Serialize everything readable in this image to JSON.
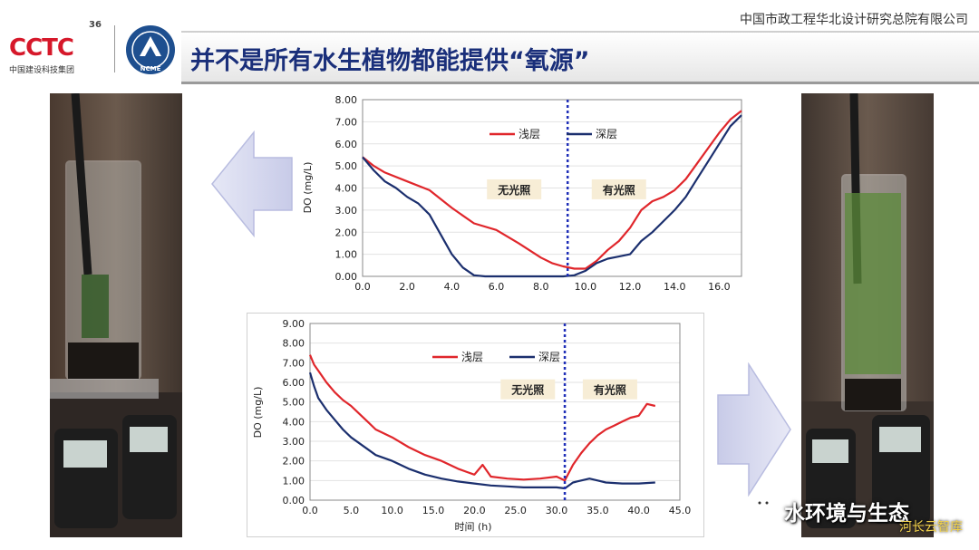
{
  "header": {
    "org_name": "中国市政工程华北设计研究总院有限公司",
    "logo_number": "36",
    "logo_mark": "CCTC",
    "logo_subtitle": "中国建设科技集团",
    "badge_text": "NCME",
    "title": "并不是所有水生植物都能提供“氧源”"
  },
  "watermark": {
    "text": "水环境与生态",
    "sub": "河长云智库"
  },
  "colors": {
    "shallow": "#e0262b",
    "deep": "#1b2f6e",
    "divider": "#1f2fb8",
    "title": "#1a2f7a"
  },
  "chart_data": [
    {
      "type": "line",
      "ylabel": "DO (mg/L)",
      "xlabel": "",
      "xlim": [
        0,
        17
      ],
      "ylim": [
        0,
        8
      ],
      "xticks": [
        "0.0",
        "2.0",
        "4.0",
        "6.0",
        "8.0",
        "10.0",
        "12.0",
        "14.0",
        "16.0"
      ],
      "yticks": [
        "0.00",
        "1.00",
        "2.00",
        "3.00",
        "4.00",
        "5.00",
        "6.00",
        "7.00",
        "8.00"
      ],
      "vline_x": 9.2,
      "annotations": [
        {
          "text": "无光照",
          "x": 6.8,
          "y": 3.9
        },
        {
          "text": "有光照",
          "x": 11.5,
          "y": 3.9
        }
      ],
      "legend": "top-center",
      "series": [
        {
          "name": "浅层",
          "x": [
            0,
            0.5,
            1,
            2,
            3,
            4,
            5,
            6,
            7,
            8,
            8.5,
            9,
            9.5,
            10,
            10.5,
            11,
            11.5,
            12,
            12.5,
            13,
            13.5,
            14,
            14.5,
            15,
            15.5,
            16,
            16.5,
            17
          ],
          "y": [
            5.4,
            5.0,
            4.7,
            4.3,
            3.9,
            3.1,
            2.4,
            2.1,
            1.5,
            0.85,
            0.6,
            0.45,
            0.35,
            0.35,
            0.7,
            1.2,
            1.6,
            2.2,
            3.0,
            3.4,
            3.6,
            3.9,
            4.4,
            5.1,
            5.8,
            6.5,
            7.1,
            7.5
          ]
        },
        {
          "name": "深层",
          "x": [
            0,
            0.5,
            1,
            1.5,
            2,
            2.5,
            3,
            3.5,
            4,
            4.5,
            5,
            5.5,
            6,
            7,
            8,
            9,
            9.5,
            10,
            10.5,
            11,
            11.5,
            12,
            12.5,
            13,
            13.5,
            14,
            14.5,
            15,
            15.5,
            16,
            16.5,
            17
          ],
          "y": [
            5.4,
            4.8,
            4.3,
            4.0,
            3.6,
            3.3,
            2.8,
            1.9,
            1.0,
            0.4,
            0.05,
            0.0,
            0.0,
            0.0,
            0.0,
            0.0,
            0.05,
            0.25,
            0.6,
            0.8,
            0.9,
            1.0,
            1.6,
            2.0,
            2.5,
            3.0,
            3.6,
            4.4,
            5.2,
            6.0,
            6.8,
            7.3
          ]
        }
      ]
    },
    {
      "type": "line",
      "ylabel": "DO (mg/L)",
      "xlabel": "时间 (h)",
      "xlim": [
        0,
        45
      ],
      "ylim": [
        0,
        9
      ],
      "xticks": [
        "0.0",
        "5.0",
        "10.0",
        "15.0",
        "20.0",
        "25.0",
        "30.0",
        "35.0",
        "40.0",
        "45.0"
      ],
      "yticks": [
        "0.00",
        "1.00",
        "2.00",
        "3.00",
        "4.00",
        "5.00",
        "6.00",
        "7.00",
        "8.00",
        "9.00"
      ],
      "vline_x": 31,
      "annotations": [
        {
          "text": "无光照",
          "x": 26.5,
          "y": 5.6
        },
        {
          "text": "有光照",
          "x": 36.5,
          "y": 5.6
        }
      ],
      "legend": "top-center",
      "series": [
        {
          "name": "浅层",
          "x": [
            0,
            0.5,
            1,
            2,
            3,
            4,
            5,
            6,
            7,
            8,
            10,
            12,
            14,
            16,
            18,
            19,
            20,
            21,
            22,
            24,
            26,
            28,
            30,
            31,
            32,
            33,
            34,
            35,
            36,
            37,
            38,
            39,
            40,
            41,
            42
          ],
          "y": [
            7.4,
            6.9,
            6.6,
            6.0,
            5.5,
            5.1,
            4.8,
            4.4,
            4.0,
            3.6,
            3.2,
            2.7,
            2.3,
            2.0,
            1.6,
            1.45,
            1.3,
            1.8,
            1.2,
            1.1,
            1.05,
            1.1,
            1.2,
            1.0,
            1.8,
            2.4,
            2.9,
            3.3,
            3.6,
            3.8,
            4.0,
            4.2,
            4.3,
            4.9,
            4.8
          ]
        },
        {
          "name": "深层",
          "x": [
            0,
            0.5,
            1,
            2,
            3,
            4,
            5,
            6,
            7,
            8,
            10,
            12,
            14,
            16,
            18,
            20,
            22,
            24,
            26,
            28,
            30,
            31,
            32,
            33,
            34,
            35,
            36,
            38,
            40,
            42
          ],
          "y": [
            6.5,
            5.8,
            5.2,
            4.6,
            4.1,
            3.6,
            3.2,
            2.9,
            2.6,
            2.3,
            2.0,
            1.6,
            1.3,
            1.1,
            0.95,
            0.85,
            0.75,
            0.7,
            0.65,
            0.65,
            0.65,
            0.6,
            0.9,
            1.0,
            1.1,
            1.0,
            0.9,
            0.85,
            0.85,
            0.9
          ]
        }
      ]
    }
  ]
}
